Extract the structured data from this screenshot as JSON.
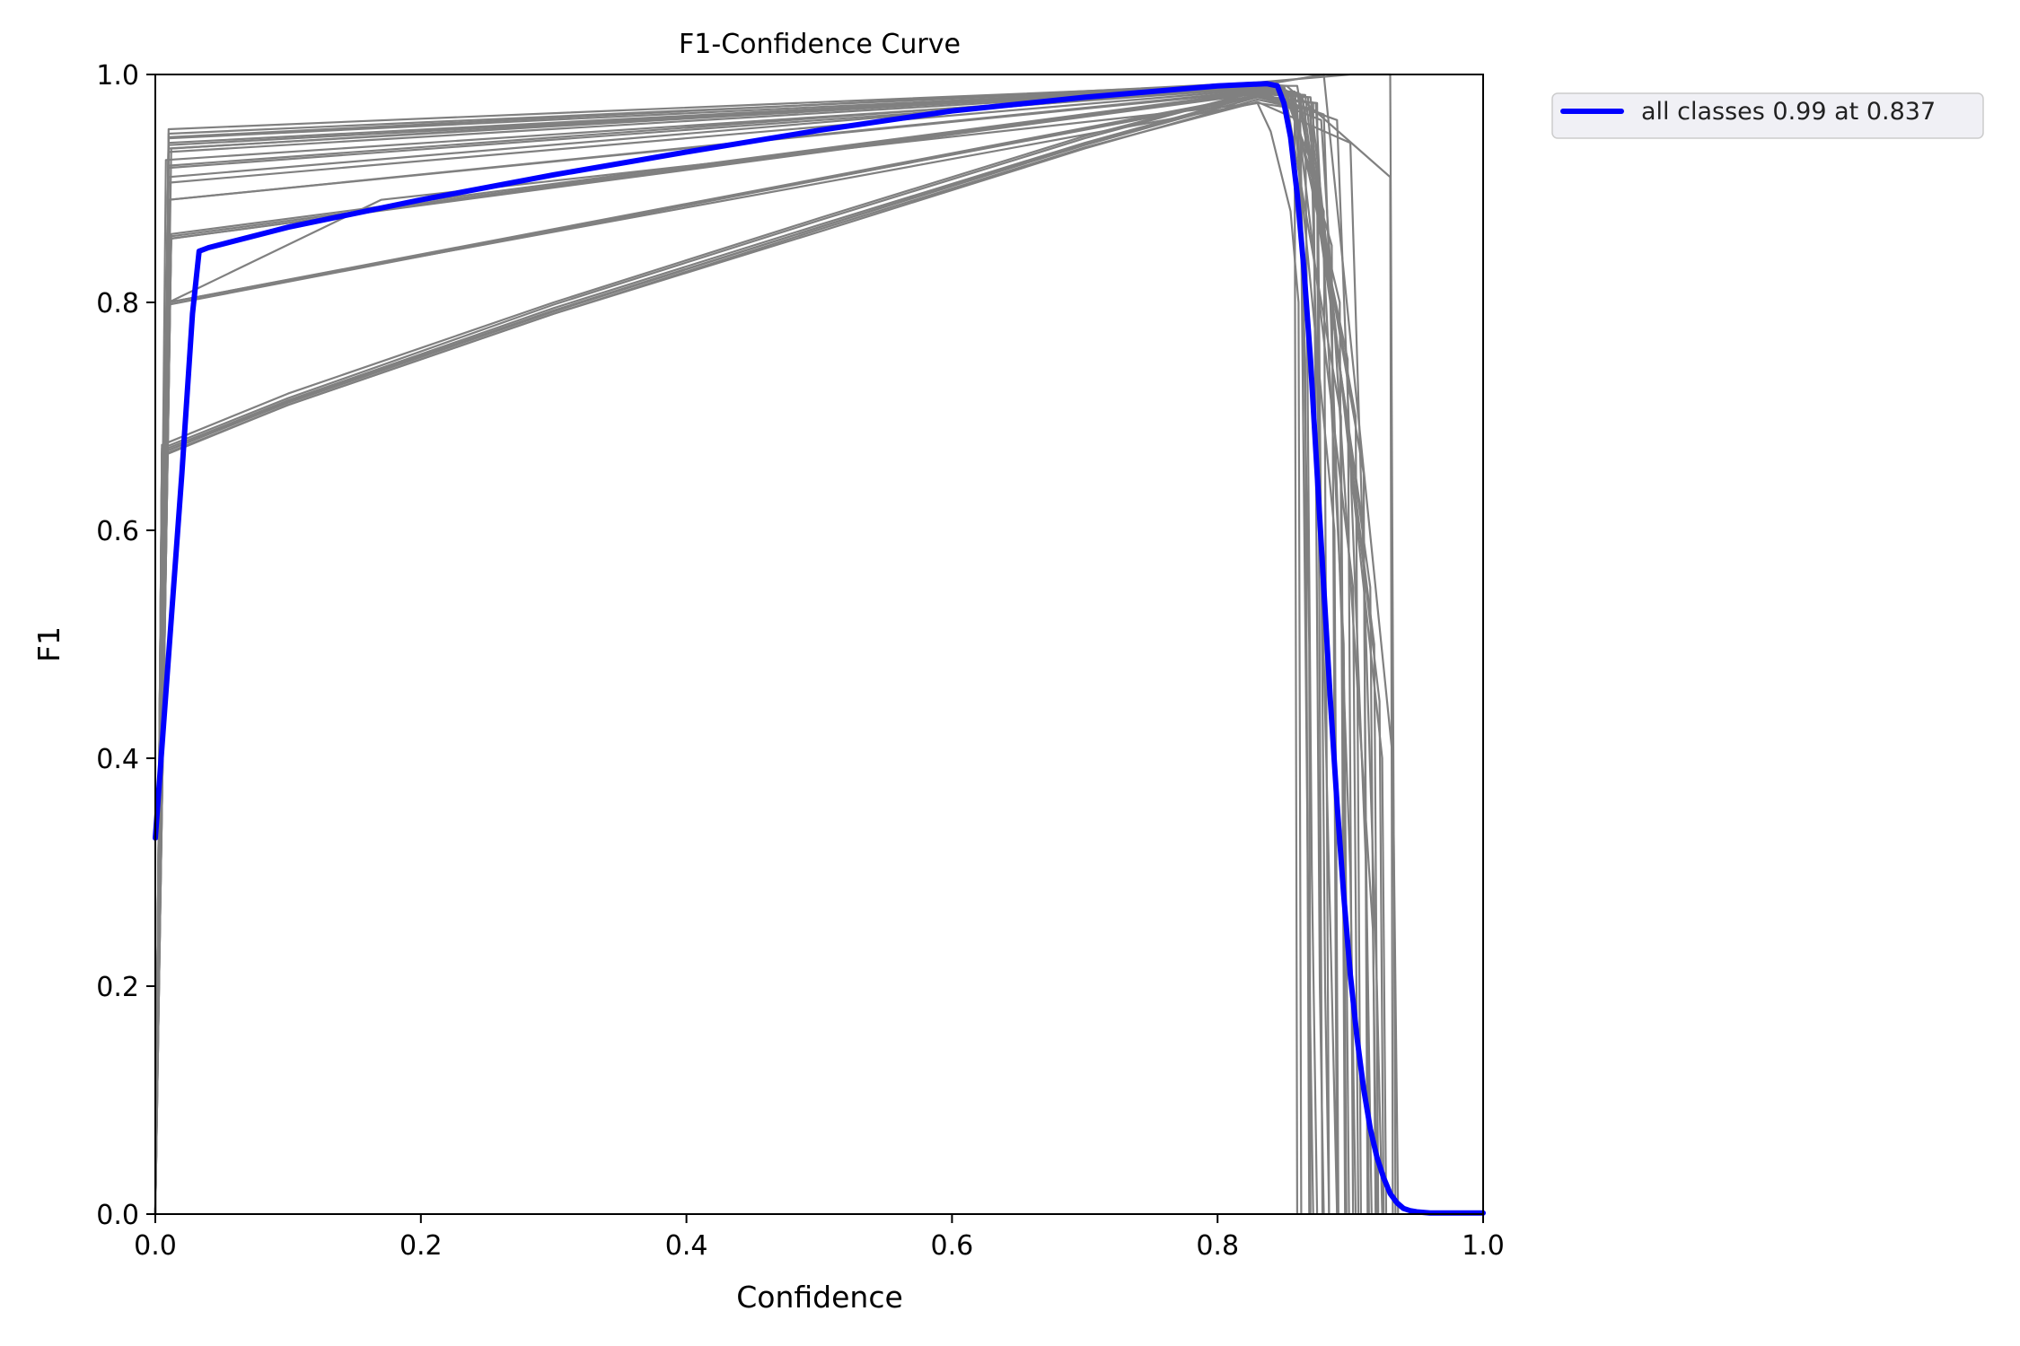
{
  "chart_data": {
    "type": "line",
    "title": "F1-Confidence Curve",
    "xlabel": "Confidence",
    "ylabel": "F1",
    "xlim": [
      0,
      1
    ],
    "ylim": [
      0,
      1
    ],
    "xticks": [
      "0.0",
      "0.2",
      "0.4",
      "0.6",
      "0.8",
      "1.0"
    ],
    "yticks": [
      "0.0",
      "0.2",
      "0.4",
      "0.6",
      "0.8",
      "1.0"
    ],
    "grid": false,
    "legend_position": "outside-top-right",
    "colors": {
      "mean": "#0000ff",
      "classes": "#808080"
    },
    "series": [
      {
        "name": "all classes 0.99 at 0.837",
        "color": "#0000ff",
        "x": [
          0.0,
          0.005,
          0.01,
          0.02,
          0.028,
          0.033,
          0.04,
          0.1,
          0.2,
          0.3,
          0.4,
          0.5,
          0.6,
          0.7,
          0.8,
          0.837,
          0.845,
          0.85,
          0.855,
          0.86,
          0.865,
          0.87,
          0.875,
          0.88,
          0.885,
          0.89,
          0.895,
          0.9,
          0.905,
          0.91,
          0.915,
          0.92,
          0.925,
          0.93,
          0.935,
          0.94,
          0.945,
          0.95,
          0.96,
          1.0
        ],
        "y": [
          0.33,
          0.41,
          0.49,
          0.65,
          0.79,
          0.845,
          0.848,
          0.866,
          0.89,
          0.912,
          0.932,
          0.951,
          0.968,
          0.98,
          0.99,
          0.992,
          0.99,
          0.975,
          0.945,
          0.895,
          0.83,
          0.75,
          0.65,
          0.55,
          0.45,
          0.36,
          0.28,
          0.21,
          0.155,
          0.11,
          0.075,
          0.05,
          0.032,
          0.018,
          0.01,
          0.005,
          0.003,
          0.002,
          0.001,
          0.001
        ]
      }
    ],
    "class_curves": [
      {
        "x": [
          0.0,
          0.01,
          0.835,
          0.845,
          0.862,
          0.869,
          0.87
        ],
        "y": [
          0.0,
          0.952,
          0.992,
          0.99,
          0.975,
          0.5,
          0.0
        ]
      },
      {
        "x": [
          0.0,
          0.01,
          0.835,
          0.848,
          0.875,
          0.879
        ],
        "y": [
          0.0,
          0.948,
          0.991,
          0.99,
          0.91,
          0.0
        ]
      },
      {
        "x": [
          0.0,
          0.01,
          0.83,
          0.85,
          0.88,
          0.884
        ],
        "y": [
          0.0,
          0.944,
          0.99,
          0.988,
          0.88,
          0.0
        ]
      },
      {
        "x": [
          0.0,
          0.01,
          0.83,
          0.852,
          0.886,
          0.89
        ],
        "y": [
          0.0,
          0.938,
          0.99,
          0.986,
          0.85,
          0.0
        ]
      },
      {
        "x": [
          0.0,
          0.01,
          0.83,
          0.854,
          0.892,
          0.896
        ],
        "y": [
          0.0,
          0.932,
          0.989,
          0.985,
          0.8,
          0.0
        ]
      },
      {
        "x": [
          0.0,
          0.008,
          0.83,
          0.856,
          0.898,
          0.902
        ],
        "y": [
          0.0,
          0.925,
          0.988,
          0.984,
          0.75,
          0.0
        ]
      },
      {
        "x": [
          0.0,
          0.01,
          0.83,
          0.86,
          0.904,
          0.908
        ],
        "y": [
          0.0,
          0.918,
          0.988,
          0.984,
          0.7,
          0.0
        ]
      },
      {
        "x": [
          0.0,
          0.01,
          0.83,
          0.862,
          0.91,
          0.914
        ],
        "y": [
          0.0,
          0.905,
          0.987,
          0.983,
          0.6,
          0.0
        ]
      },
      {
        "x": [
          0.0,
          0.01,
          0.83,
          0.864,
          0.915,
          0.919
        ],
        "y": [
          0.0,
          0.89,
          0.986,
          0.98,
          0.55,
          0.0
        ]
      },
      {
        "x": [
          0.0,
          0.01,
          0.83,
          0.866,
          0.918,
          0.921
        ],
        "y": [
          0.0,
          0.89,
          0.985,
          0.982,
          0.5,
          0.0
        ]
      },
      {
        "x": [
          0.0,
          0.012,
          0.83,
          0.868,
          0.922,
          0.925
        ],
        "y": [
          0.0,
          0.858,
          0.984,
          0.98,
          0.45,
          0.0
        ]
      },
      {
        "x": [
          0.0,
          0.012,
          0.83,
          0.87,
          0.924,
          0.927
        ],
        "y": [
          0.0,
          0.856,
          0.983,
          0.98,
          0.4,
          0.0
        ]
      },
      {
        "x": [
          0.0,
          0.01,
          0.83,
          0.872,
          0.877,
          0.88
        ],
        "y": [
          0.0,
          0.8,
          0.982,
          0.975,
          0.2,
          0.0
        ]
      },
      {
        "x": [
          0.0,
          0.01,
          0.83,
          0.875,
          0.881,
          0.884
        ],
        "y": [
          0.0,
          0.798,
          0.981,
          0.975,
          0.2,
          0.0
        ]
      },
      {
        "x": [
          0.0,
          0.005,
          0.1,
          0.3,
          0.5,
          0.7,
          0.83,
          0.862,
          0.868,
          0.872
        ],
        "y": [
          0.0,
          0.665,
          0.71,
          0.79,
          0.862,
          0.935,
          0.978,
          0.97,
          0.3,
          0.0
        ]
      },
      {
        "x": [
          0.0,
          0.005,
          0.1,
          0.3,
          0.5,
          0.7,
          0.83,
          0.866,
          0.871,
          0.875
        ],
        "y": [
          0.0,
          0.668,
          0.712,
          0.792,
          0.866,
          0.938,
          0.98,
          0.97,
          0.3,
          0.0
        ]
      },
      {
        "x": [
          0.0,
          0.005,
          0.1,
          0.3,
          0.5,
          0.7,
          0.83,
          0.87,
          0.886,
          0.89
        ],
        "y": [
          0.0,
          0.67,
          0.714,
          0.795,
          0.868,
          0.94,
          0.982,
          0.97,
          0.2,
          0.0
        ]
      },
      {
        "x": [
          0.0,
          0.005,
          0.1,
          0.3,
          0.5,
          0.7,
          0.83,
          0.88,
          0.9,
          0.904
        ],
        "y": [
          0.0,
          0.672,
          0.716,
          0.798,
          0.872,
          0.944,
          0.985,
          0.965,
          0.3,
          0.0
        ]
      },
      {
        "x": [
          0.0,
          0.005,
          0.1,
          0.3,
          0.5,
          0.7,
          0.83,
          0.89,
          0.912,
          0.916
        ],
        "y": [
          0.0,
          0.675,
          0.72,
          0.8,
          0.874,
          0.946,
          0.985,
          0.96,
          0.3,
          0.0
        ]
      },
      {
        "x": [
          0.0,
          0.005,
          0.1,
          0.3,
          0.5,
          0.7,
          0.83,
          0.9,
          0.92,
          0.924
        ],
        "y": [
          0.0,
          0.666,
          0.71,
          0.79,
          0.864,
          0.936,
          0.976,
          0.94,
          0.2,
          0.0
        ]
      },
      {
        "x": [
          0.0,
          0.01,
          0.17,
          0.83,
          0.84,
          0.855,
          0.861,
          0.863
        ],
        "y": [
          0.0,
          0.8,
          0.89,
          0.975,
          0.95,
          0.88,
          0.8,
          0.0
        ]
      },
      {
        "x": [
          0.0,
          0.01,
          0.83,
          0.86,
          0.866,
          0.869
        ],
        "y": [
          0.0,
          0.8,
          0.975,
          0.97,
          0.75,
          0.0
        ]
      },
      {
        "x": [
          0.0,
          0.01,
          0.83,
          0.9,
          0.93,
          0.934
        ],
        "y": [
          0.0,
          0.945,
          0.993,
          1.0,
          1.0,
          0.0
        ]
      },
      {
        "x": [
          0.0,
          0.01,
          0.83,
          0.88,
          0.932,
          0.936
        ],
        "y": [
          0.0,
          0.94,
          0.99,
          1.0,
          0.4,
          0.0
        ]
      },
      {
        "x": [
          0.0,
          0.012,
          0.83,
          0.852,
          0.93,
          0.932
        ],
        "y": [
          0.0,
          0.935,
          0.992,
          0.99,
          0.91,
          0.0
        ]
      },
      {
        "x": [
          0.0,
          0.01,
          0.83,
          0.85,
          0.858,
          0.86
        ],
        "y": [
          0.0,
          0.935,
          0.99,
          0.99,
          0.96,
          0.0
        ]
      },
      {
        "x": [
          0.0,
          0.01,
          0.83,
          0.86,
          0.91,
          0.913
        ],
        "y": [
          0.0,
          0.92,
          0.99,
          0.99,
          0.65,
          0.0
        ]
      },
      {
        "x": [
          0.0,
          0.012,
          0.83,
          0.858,
          0.902,
          0.906
        ],
        "y": [
          0.0,
          0.86,
          0.985,
          0.985,
          0.55,
          0.0
        ]
      },
      {
        "x": [
          0.0,
          0.01,
          0.83,
          0.874,
          0.895,
          0.899
        ],
        "y": [
          0.0,
          0.8,
          0.98,
          0.975,
          0.5,
          0.0
        ]
      },
      {
        "x": [
          0.0,
          0.005,
          0.1,
          0.3,
          0.5,
          0.7,
          0.83,
          0.878,
          0.917,
          0.92
        ],
        "y": [
          0.0,
          0.668,
          0.713,
          0.793,
          0.866,
          0.939,
          0.982,
          0.96,
          0.25,
          0.0
        ]
      },
      {
        "x": [
          0.0,
          0.01,
          0.83,
          0.85,
          0.893,
          0.897
        ],
        "y": [
          0.0,
          0.91,
          0.99,
          0.99,
          0.7,
          0.0
        ]
      },
      {
        "x": [
          0.0,
          0.012,
          0.83,
          0.856,
          0.888,
          0.891
        ],
        "y": [
          0.0,
          0.856,
          0.984,
          0.985,
          0.6,
          0.0
        ]
      }
    ]
  },
  "legend": {
    "label": "all classes 0.99 at 0.837"
  }
}
